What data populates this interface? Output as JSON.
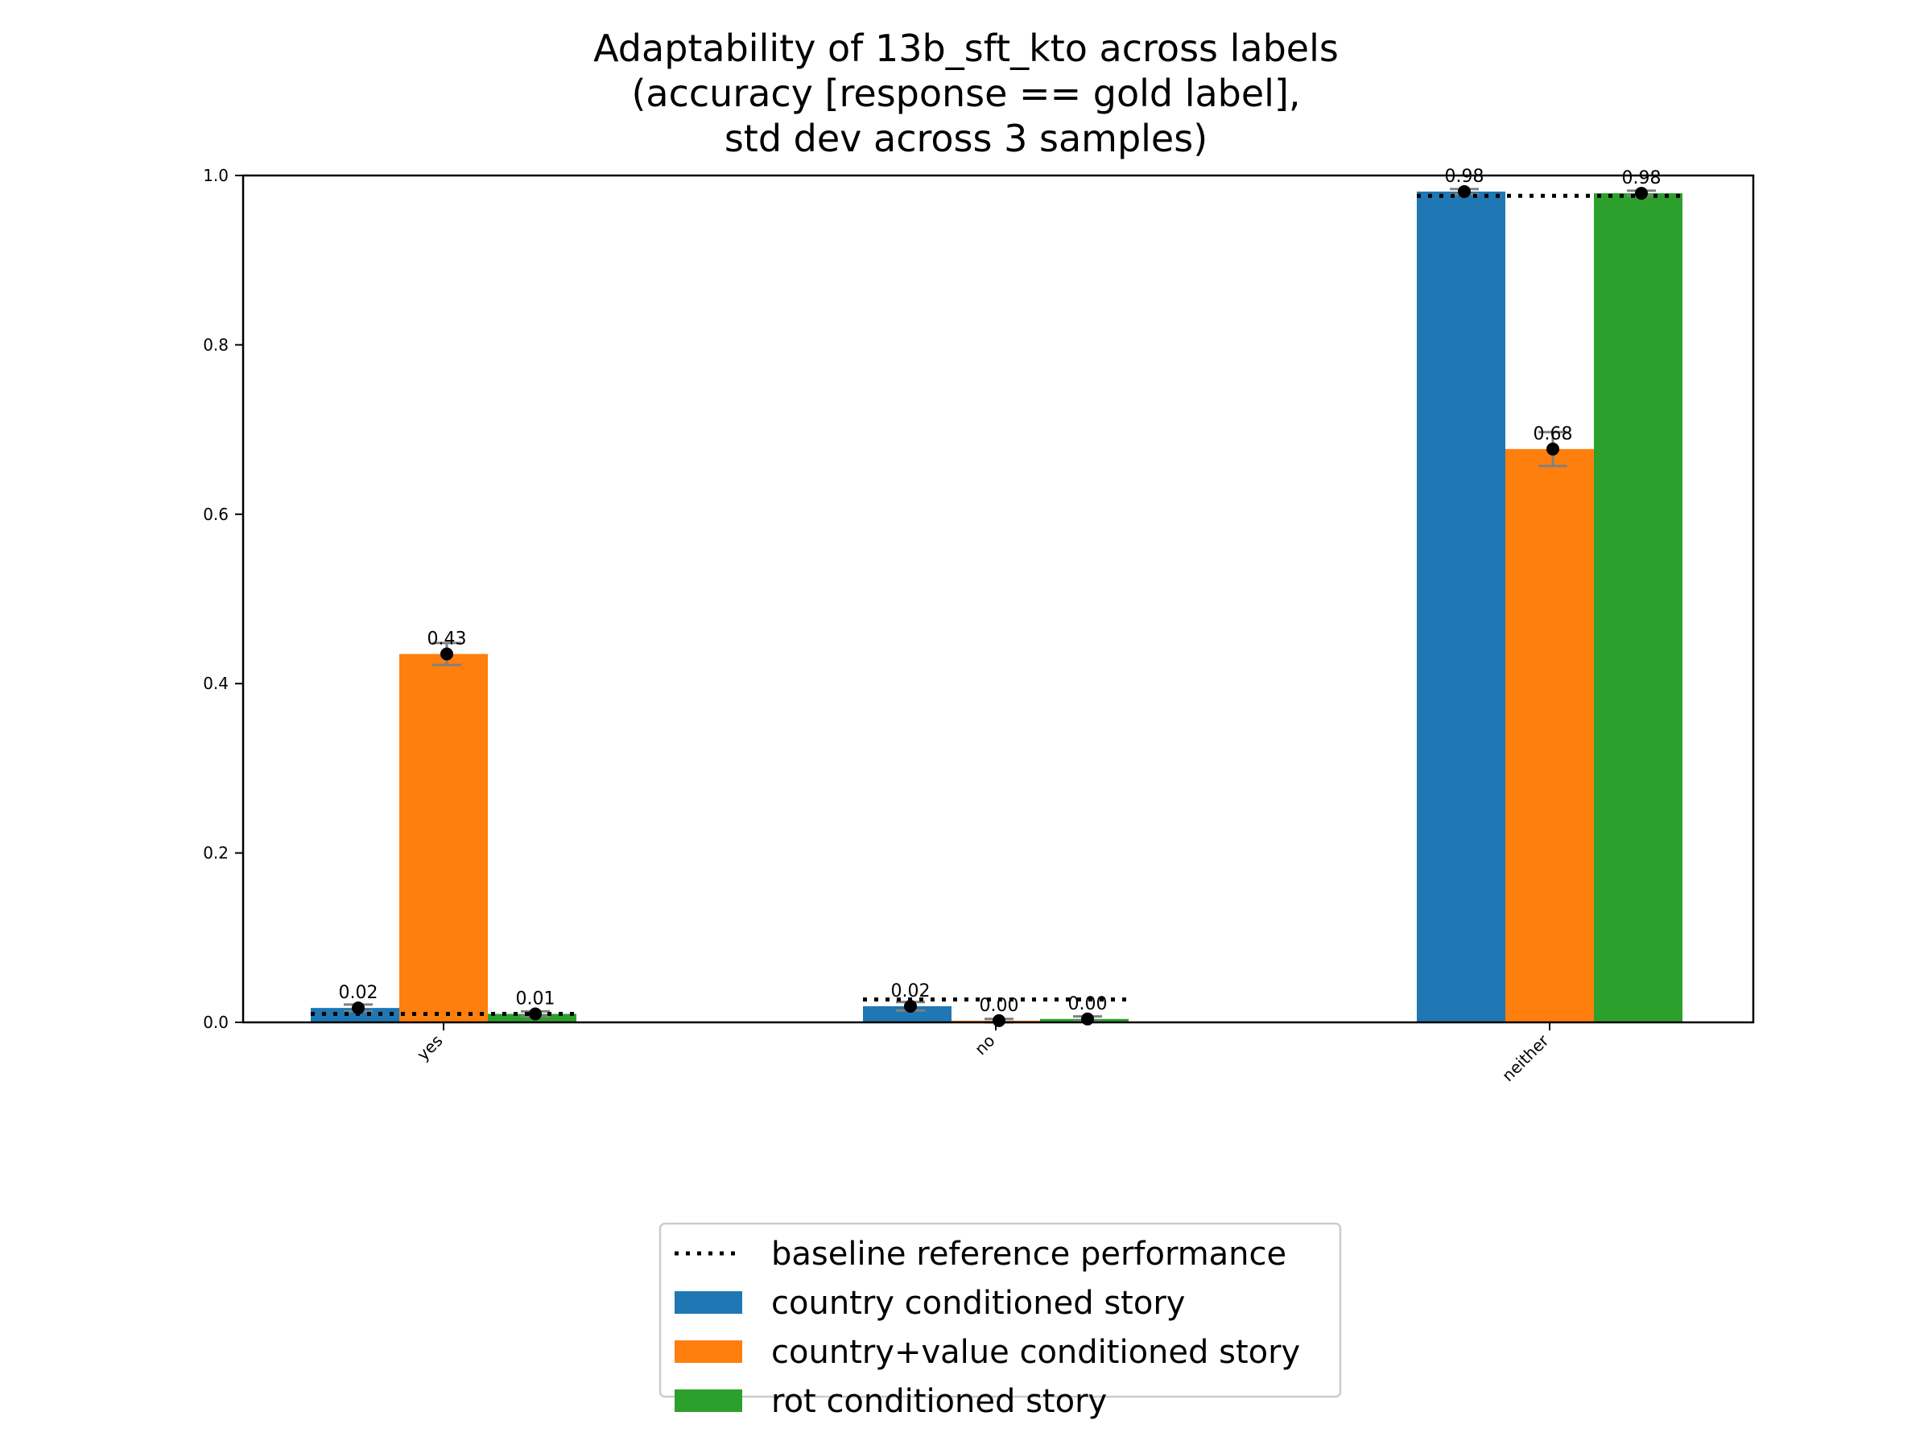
{
  "chart_data": {
    "type": "bar",
    "title": [
      "Adaptability of 13b_sft_kto across labels",
      "(accuracy [response == gold label],",
      "std dev across 3 samples)"
    ],
    "xlabel": "",
    "ylabel": "",
    "ylim": [
      0,
      1.0
    ],
    "yticks": [
      "0.0",
      "0.2",
      "0.4",
      "0.6",
      "0.8",
      "1.0"
    ],
    "categories": [
      "yes",
      "no",
      "neither"
    ],
    "series": [
      {
        "name": "country conditioned story",
        "color": "#1f77b4",
        "values": [
          0.017,
          0.019,
          0.981
        ],
        "std": [
          0.004,
          0.005,
          0.003
        ],
        "labels": [
          "0.02",
          "0.02",
          "0.98"
        ]
      },
      {
        "name": "country+value conditioned story",
        "color": "#ff7f0e",
        "values": [
          0.435,
          0.002,
          0.677
        ],
        "std": [
          0.013,
          0.002,
          0.02
        ],
        "labels": [
          "0.43",
          "0.00",
          "0.68"
        ]
      },
      {
        "name": "rot conditioned story",
        "color": "#2ca02c",
        "values": [
          0.01,
          0.004,
          0.979
        ],
        "std": [
          0.003,
          0.003,
          0.003
        ],
        "labels": [
          "0.01",
          "0.00",
          "0.98"
        ]
      }
    ],
    "baseline": {
      "name": "baseline reference performance",
      "values": [
        0.01,
        0.027,
        0.976
      ]
    },
    "legend": [
      {
        "label": "baseline reference performance",
        "kind": "dotted-line"
      },
      {
        "label": "country conditioned story",
        "kind": "patch",
        "color": "#1f77b4"
      },
      {
        "label": "country+value conditioned story",
        "kind": "patch",
        "color": "#ff7f0e"
      },
      {
        "label": "rot conditioned story",
        "kind": "patch",
        "color": "#2ca02c"
      }
    ],
    "legend_position": "bottom-center"
  }
}
